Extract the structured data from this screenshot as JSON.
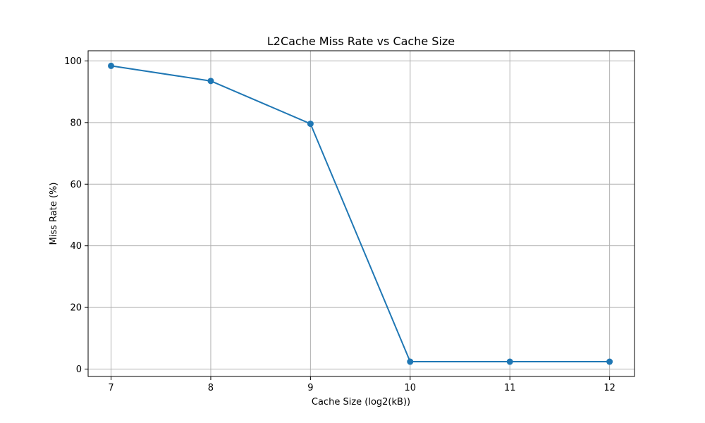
{
  "chart_data": {
    "type": "line",
    "title": "L2Cache Miss Rate vs Cache Size",
    "xlabel": "Cache Size (log2(kB))",
    "ylabel": "Miss Rate (%)",
    "x": [
      7,
      8,
      9,
      10,
      11,
      12
    ],
    "series": [
      {
        "values": [
          98.4,
          93.5,
          79.6,
          2.4,
          2.4,
          2.4
        ],
        "color": "#1f77b4",
        "marker": "circle"
      }
    ],
    "xticks": [
      "7",
      "8",
      "9",
      "10",
      "11",
      "12"
    ],
    "yticks": [
      "0",
      "20",
      "40",
      "60",
      "80",
      "100"
    ],
    "xlim": [
      6.77,
      12.25
    ],
    "ylim": [
      -2.4,
      103.3
    ],
    "grid": true
  }
}
